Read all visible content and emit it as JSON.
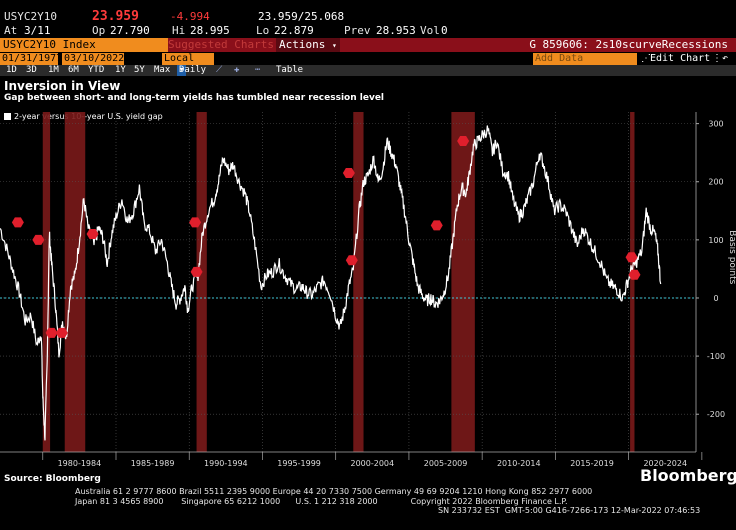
{
  "quote": {
    "ticker": "USYC2Y10",
    "last": "23.959",
    "change": "-4.994",
    "range": "23.959/25.068",
    "at_label": "At",
    "at_value": "3/11",
    "op_label": "Op",
    "op_value": "27.790",
    "hi_label": "Hi",
    "hi_value": "28.995",
    "lo_label": "Lo",
    "lo_value": "22.879",
    "prev_label": "Prev",
    "prev_value": "28.953",
    "vol_label": "Vol",
    "vol_value": "0"
  },
  "toolbar": {
    "security": "USYC2Y10 Index",
    "suggested": "Suggested Charts",
    "actions": "Actions",
    "chart_name": "G 859606: 2s10scurveRecessions",
    "start_date": "01/31/1977",
    "end_date": "03/10/2022",
    "currency": "Local CCY",
    "add_data": "Add Data",
    "edit_chart": "Edit Chart",
    "periods": [
      "1D",
      "3D",
      "1M",
      "6M",
      "YTD",
      "1Y",
      "5Y",
      "Max"
    ],
    "frequency": "Daily",
    "table": "Table"
  },
  "chart": {
    "title": "Inversion in View",
    "subtitle": "Gap between short- and long-term yields has tumbled near recession level",
    "legend": "2-year versus 10--year U.S. yield gap",
    "source": "Source: Bloomberg",
    "logo": "Bloomberg"
  },
  "colors": {
    "background": "#000000",
    "accent": "#f08c1e",
    "recession": "#7a1a1a",
    "line": "#ffffff",
    "zero_line": "#3fc6d6",
    "marker": "#e01f2c"
  },
  "chart_data": {
    "type": "line",
    "title": "Inversion in View",
    "subtitle": "Gap between short- and long-term yields has tumbled near recession level",
    "ylabel": "Basis points",
    "ylim": [
      -265,
      320
    ],
    "yticks": [
      300,
      200,
      100,
      0,
      -100,
      -200
    ],
    "xlim": [
      1977.08,
      2024.6
    ],
    "xtick_labels": [
      "1980-1984",
      "1985-1989",
      "1990-1994",
      "1995-1999",
      "2000-2004",
      "2005-2009",
      "2010-2014",
      "2015-2019",
      "2020-2024"
    ],
    "xtick_centers": [
      1982.5,
      1987.5,
      1992.5,
      1997.5,
      2002.5,
      2007.5,
      2012.5,
      2017.5,
      2022.5
    ],
    "recessions": [
      [
        1980.0,
        1980.5
      ],
      [
        1981.5,
        1982.9
      ],
      [
        1990.5,
        1991.2
      ],
      [
        2001.2,
        2001.9
      ],
      [
        2007.9,
        2009.5
      ],
      [
        2020.1,
        2020.4
      ]
    ],
    "series": [
      {
        "name": "2-year versus 10--year U.S. yield gap",
        "points": [
          [
            1977.1,
            120
          ],
          [
            1977.6,
            80
          ],
          [
            1978.0,
            45
          ],
          [
            1978.4,
            10
          ],
          [
            1978.8,
            -40
          ],
          [
            1979.2,
            -30
          ],
          [
            1979.6,
            -80
          ],
          [
            1979.9,
            -60
          ],
          [
            1980.0,
            -170
          ],
          [
            1980.15,
            -240
          ],
          [
            1980.3,
            -110
          ],
          [
            1980.45,
            110
          ],
          [
            1980.6,
            60
          ],
          [
            1980.85,
            -5
          ],
          [
            1981.1,
            -95
          ],
          [
            1981.35,
            -40
          ],
          [
            1981.6,
            -70
          ],
          [
            1981.9,
            20
          ],
          [
            1982.2,
            40
          ],
          [
            1982.5,
            100
          ],
          [
            1982.8,
            170
          ],
          [
            1983.1,
            120
          ],
          [
            1983.5,
            90
          ],
          [
            1983.8,
            120
          ],
          [
            1984.1,
            105
          ],
          [
            1984.4,
            60
          ],
          [
            1984.7,
            110
          ],
          [
            1985.0,
            140
          ],
          [
            1985.4,
            170
          ],
          [
            1985.8,
            130
          ],
          [
            1986.2,
            150
          ],
          [
            1986.6,
            190
          ],
          [
            1986.9,
            130
          ],
          [
            1987.3,
            115
          ],
          [
            1987.7,
            80
          ],
          [
            1988.1,
            100
          ],
          [
            1988.5,
            60
          ],
          [
            1988.8,
            20
          ],
          [
            1989.1,
            -10
          ],
          [
            1989.4,
            0
          ],
          [
            1989.7,
            20
          ],
          [
            1989.9,
            -20
          ],
          [
            1990.2,
            20
          ],
          [
            1990.6,
            40
          ],
          [
            1990.9,
            110
          ],
          [
            1991.3,
            150
          ],
          [
            1991.7,
            170
          ],
          [
            1992.0,
            200
          ],
          [
            1992.3,
            240
          ],
          [
            1992.7,
            220
          ],
          [
            1993.0,
            230
          ],
          [
            1993.4,
            200
          ],
          [
            1993.8,
            180
          ],
          [
            1994.1,
            150
          ],
          [
            1994.5,
            90
          ],
          [
            1994.9,
            20
          ],
          [
            1995.3,
            40
          ],
          [
            1995.7,
            45
          ],
          [
            1996.1,
            60
          ],
          [
            1996.5,
            40
          ],
          [
            1996.9,
            25
          ],
          [
            1997.3,
            15
          ],
          [
            1997.7,
            20
          ],
          [
            1998.0,
            10
          ],
          [
            1998.4,
            5
          ],
          [
            1998.8,
            20
          ],
          [
            1999.2,
            30
          ],
          [
            1999.6,
            10
          ],
          [
            2000.0,
            -30
          ],
          [
            2000.3,
            -50
          ],
          [
            2000.6,
            -20
          ],
          [
            2000.9,
            20
          ],
          [
            2001.2,
            50
          ],
          [
            2001.6,
            150
          ],
          [
            2001.9,
            200
          ],
          [
            2002.2,
            210
          ],
          [
            2002.6,
            240
          ],
          [
            2002.9,
            200
          ],
          [
            2003.2,
            220
          ],
          [
            2003.5,
            270
          ],
          [
            2003.8,
            250
          ],
          [
            2004.1,
            230
          ],
          [
            2004.4,
            190
          ],
          [
            2004.7,
            150
          ],
          [
            2005.0,
            100
          ],
          [
            2005.3,
            60
          ],
          [
            2005.6,
            20
          ],
          [
            2005.9,
            5
          ],
          [
            2006.2,
            -5
          ],
          [
            2006.5,
            0
          ],
          [
            2006.8,
            -10
          ],
          [
            2007.1,
            -5
          ],
          [
            2007.4,
            10
          ],
          [
            2007.7,
            40
          ],
          [
            2008.0,
            100
          ],
          [
            2008.3,
            160
          ],
          [
            2008.6,
            190
          ],
          [
            2008.9,
            180
          ],
          [
            2009.1,
            210
          ],
          [
            2009.4,
            260
          ],
          [
            2009.7,
            270
          ],
          [
            2010.0,
            280
          ],
          [
            2010.4,
            290
          ],
          [
            2010.7,
            250
          ],
          [
            2011.0,
            270
          ],
          [
            2011.4,
            220
          ],
          [
            2011.8,
            210
          ],
          [
            2012.1,
            170
          ],
          [
            2012.5,
            140
          ],
          [
            2012.8,
            150
          ],
          [
            2013.1,
            170
          ],
          [
            2013.5,
            200
          ],
          [
            2013.9,
            250
          ],
          [
            2014.2,
            230
          ],
          [
            2014.6,
            190
          ],
          [
            2014.9,
            150
          ],
          [
            2015.3,
            160
          ],
          [
            2015.7,
            150
          ],
          [
            2016.1,
            120
          ],
          [
            2016.5,
            90
          ],
          [
            2016.9,
            120
          ],
          [
            2017.3,
            100
          ],
          [
            2017.7,
            80
          ],
          [
            2018.1,
            60
          ],
          [
            2018.5,
            30
          ],
          [
            2018.9,
            20
          ],
          [
            2019.2,
            15
          ],
          [
            2019.6,
            0
          ],
          [
            2019.9,
            25
          ],
          [
            2020.2,
            50
          ],
          [
            2020.5,
            60
          ],
          [
            2020.9,
            80
          ],
          [
            2021.2,
            150
          ],
          [
            2021.5,
            120
          ],
          [
            2021.8,
            110
          ],
          [
            2022.0,
            80
          ],
          [
            2022.19,
            24
          ]
        ]
      }
    ],
    "markers": [
      [
        1978.3,
        130
      ],
      [
        1979.7,
        100
      ],
      [
        1980.6,
        -60
      ],
      [
        1981.3,
        -60
      ],
      [
        1983.4,
        110
      ],
      [
        1990.4,
        130
      ],
      [
        1990.5,
        45
      ],
      [
        2000.9,
        215
      ],
      [
        2001.1,
        65
      ],
      [
        2006.9,
        125
      ],
      [
        2008.7,
        270
      ],
      [
        2020.2,
        70
      ],
      [
        2020.4,
        40
      ]
    ]
  }
}
